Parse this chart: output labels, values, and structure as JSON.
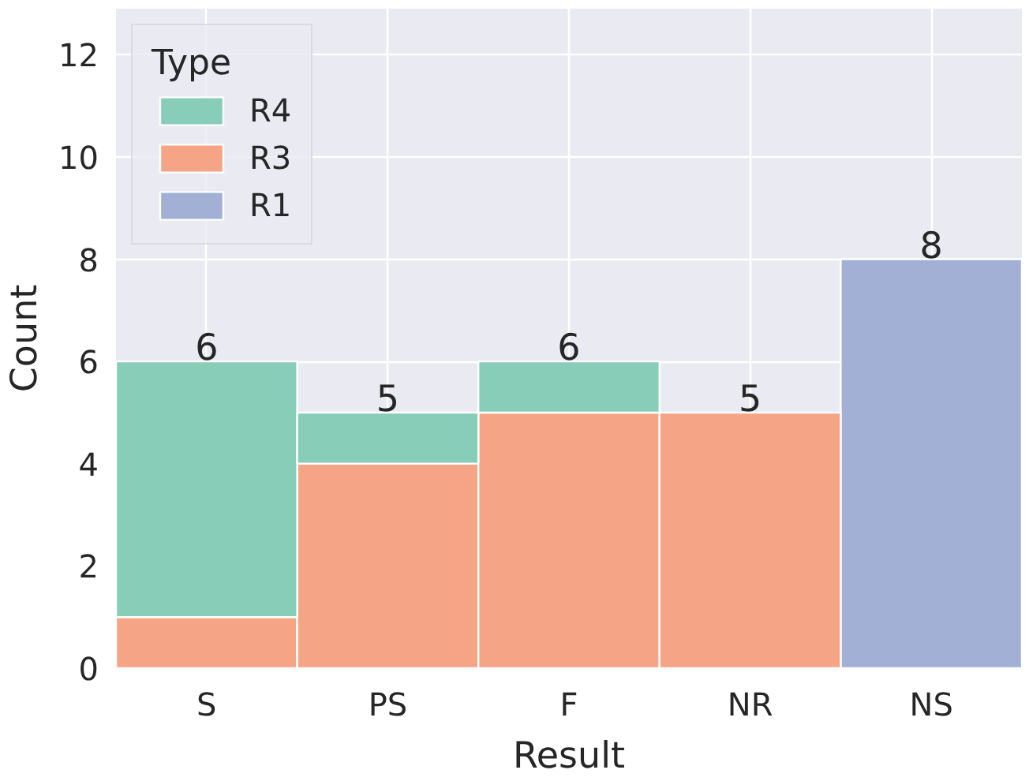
{
  "chart_data": {
    "type": "bar",
    "stacked": true,
    "xlabel": "Result",
    "ylabel": "Count",
    "legend_title": "Type",
    "categories": [
      "S",
      "PS",
      "F",
      "NR",
      "NS"
    ],
    "series": [
      {
        "name": "R1",
        "color": "#a1b0d4",
        "values": [
          0,
          0,
          0,
          0,
          8
        ]
      },
      {
        "name": "R3",
        "color": "#f5a585",
        "values": [
          1,
          4,
          5,
          5,
          0
        ]
      },
      {
        "name": "R4",
        "color": "#87cdb7",
        "values": [
          5,
          1,
          1,
          0,
          0
        ]
      }
    ],
    "totals": [
      "6",
      "5",
      "6",
      "5",
      "8"
    ],
    "ylim": [
      0,
      12.9
    ],
    "yticks": [
      0,
      2,
      4,
      6,
      8,
      10,
      12
    ],
    "grid": true,
    "legend": "top left"
  }
}
